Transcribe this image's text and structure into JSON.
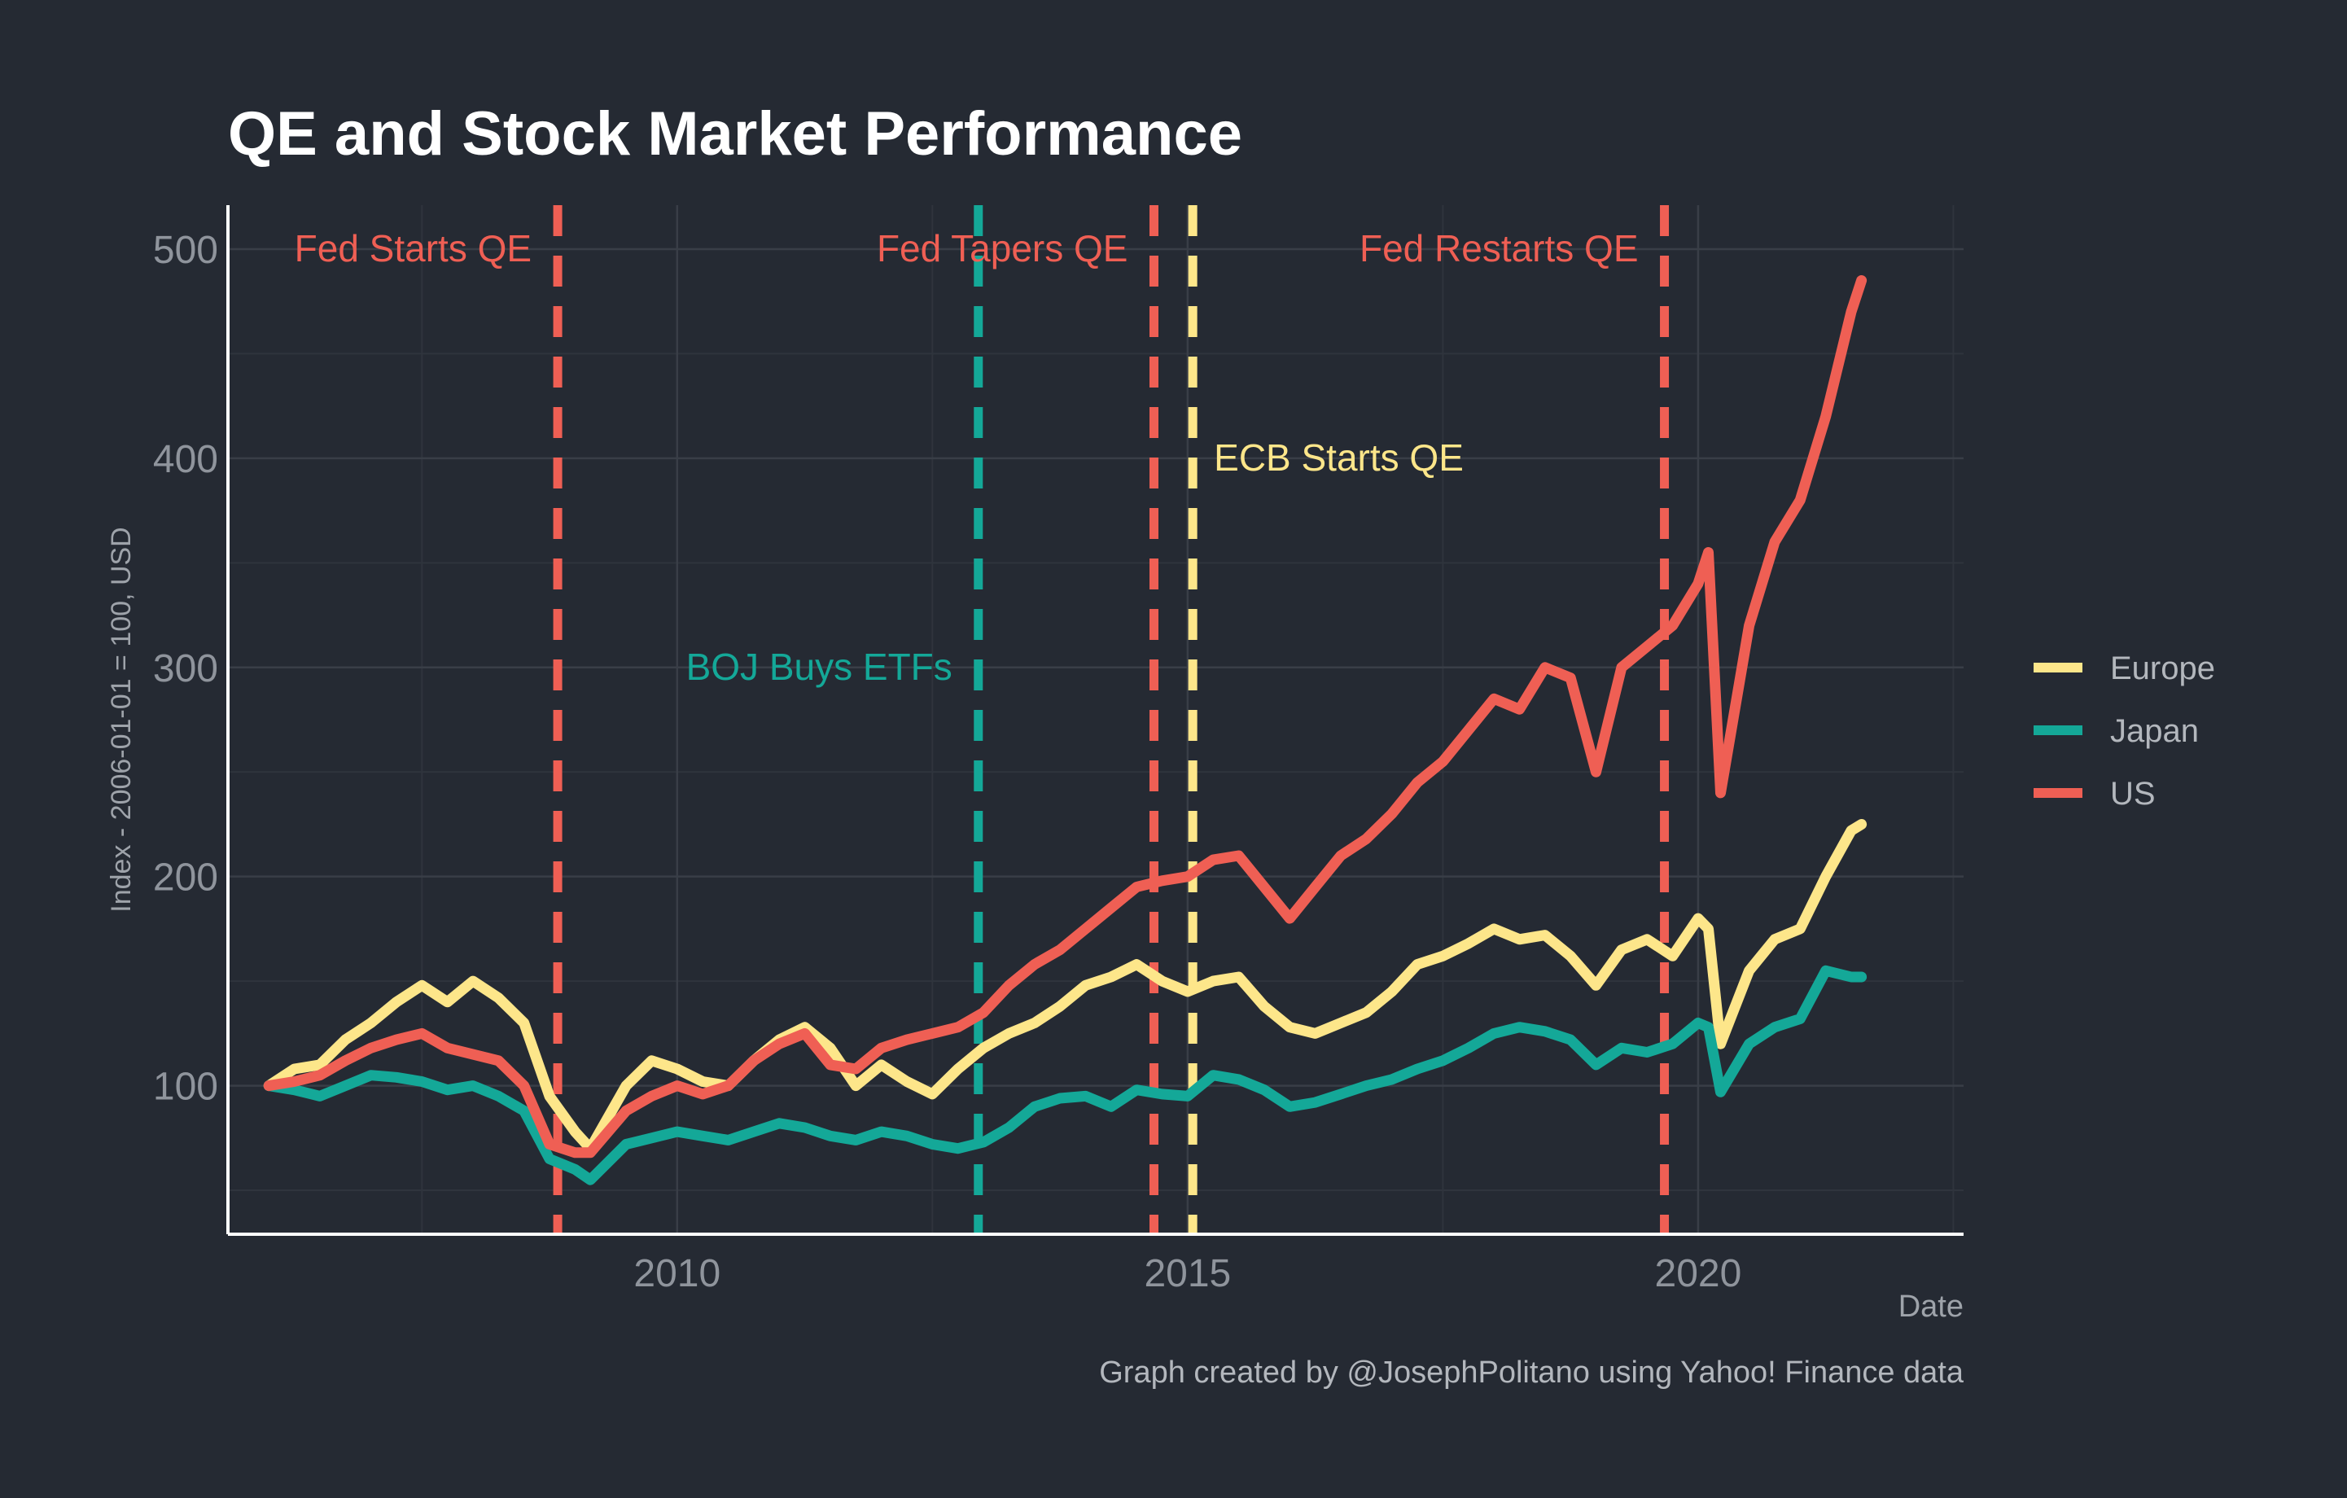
{
  "chart_data": {
    "type": "line",
    "title": "QE and Stock Market Performance",
    "xlabel": "Date",
    "ylabel": "Index - 2006-01-01 = 100, USD",
    "caption": "Graph created by @JosephPolitano using Yahoo! Finance data",
    "xlim": [
      2005.6,
      2022.6
    ],
    "ylim": [
      29,
      521
    ],
    "x_ticks": [
      2010,
      2015,
      2020
    ],
    "y_ticks": [
      100,
      200,
      300,
      400,
      500
    ],
    "grid": true,
    "legend_position": "right",
    "colors": {
      "Europe": "#fde68a",
      "Japan": "#14a898",
      "US": "#ef5f54",
      "background": "#252a33"
    },
    "series": [
      {
        "name": "Europe",
        "color": "#fde68a",
        "x": [
          2006.0,
          2006.25,
          2006.5,
          2006.75,
          2007.0,
          2007.25,
          2007.5,
          2007.75,
          2008.0,
          2008.25,
          2008.5,
          2008.75,
          2009.0,
          2009.15,
          2009.5,
          2009.75,
          2010.0,
          2010.25,
          2010.5,
          2010.75,
          2011.0,
          2011.25,
          2011.5,
          2011.75,
          2012.0,
          2012.25,
          2012.5,
          2012.75,
          2013.0,
          2013.25,
          2013.5,
          2013.75,
          2014.0,
          2014.25,
          2014.5,
          2014.75,
          2015.0,
          2015.25,
          2015.5,
          2015.75,
          2016.0,
          2016.25,
          2016.5,
          2016.75,
          2017.0,
          2017.25,
          2017.5,
          2017.75,
          2018.0,
          2018.25,
          2018.5,
          2018.75,
          2019.0,
          2019.25,
          2019.5,
          2019.75,
          2020.0,
          2020.1,
          2020.22,
          2020.5,
          2020.75,
          2021.0,
          2021.25,
          2021.5,
          2021.6
        ],
        "values": [
          100,
          108,
          110,
          122,
          130,
          140,
          148,
          140,
          150,
          142,
          130,
          95,
          78,
          70,
          100,
          112,
          108,
          102,
          100,
          112,
          122,
          128,
          118,
          100,
          110,
          102,
          96,
          108,
          118,
          125,
          130,
          138,
          148,
          152,
          158,
          150,
          145,
          150,
          152,
          138,
          128,
          125,
          130,
          135,
          145,
          158,
          162,
          168,
          175,
          170,
          172,
          162,
          148,
          165,
          170,
          162,
          180,
          175,
          120,
          155,
          170,
          175,
          200,
          222,
          225
        ]
      },
      {
        "name": "Japan",
        "color": "#14a898",
        "x": [
          2006.0,
          2006.25,
          2006.5,
          2006.75,
          2007.0,
          2007.25,
          2007.5,
          2007.75,
          2008.0,
          2008.25,
          2008.5,
          2008.75,
          2009.0,
          2009.15,
          2009.5,
          2009.75,
          2010.0,
          2010.25,
          2010.5,
          2010.75,
          2011.0,
          2011.25,
          2011.5,
          2011.75,
          2012.0,
          2012.25,
          2012.5,
          2012.75,
          2013.0,
          2013.25,
          2013.5,
          2013.75,
          2014.0,
          2014.25,
          2014.5,
          2014.75,
          2015.0,
          2015.25,
          2015.5,
          2015.75,
          2016.0,
          2016.25,
          2016.5,
          2016.75,
          2017.0,
          2017.25,
          2017.5,
          2017.75,
          2018.0,
          2018.25,
          2018.5,
          2018.75,
          2019.0,
          2019.25,
          2019.5,
          2019.75,
          2020.0,
          2020.1,
          2020.22,
          2020.5,
          2020.75,
          2021.0,
          2021.25,
          2021.5,
          2021.6
        ],
        "values": [
          100,
          98,
          95,
          100,
          105,
          104,
          102,
          98,
          100,
          95,
          88,
          65,
          60,
          55,
          72,
          75,
          78,
          76,
          74,
          78,
          82,
          80,
          76,
          74,
          78,
          76,
          72,
          70,
          73,
          80,
          90,
          94,
          95,
          90,
          98,
          96,
          95,
          105,
          103,
          98,
          90,
          92,
          96,
          100,
          103,
          108,
          112,
          118,
          125,
          128,
          126,
          122,
          110,
          118,
          116,
          120,
          130,
          128,
          97,
          120,
          128,
          132,
          155,
          152,
          152
        ]
      },
      {
        "name": "US",
        "color": "#ef5f54",
        "x": [
          2006.0,
          2006.25,
          2006.5,
          2006.75,
          2007.0,
          2007.25,
          2007.5,
          2007.75,
          2008.0,
          2008.25,
          2008.5,
          2008.75,
          2009.0,
          2009.15,
          2009.5,
          2009.75,
          2010.0,
          2010.25,
          2010.5,
          2010.75,
          2011.0,
          2011.25,
          2011.5,
          2011.75,
          2012.0,
          2012.25,
          2012.5,
          2012.75,
          2013.0,
          2013.25,
          2013.5,
          2013.75,
          2014.0,
          2014.25,
          2014.5,
          2014.75,
          2015.0,
          2015.25,
          2015.5,
          2015.75,
          2016.0,
          2016.25,
          2016.5,
          2016.75,
          2017.0,
          2017.25,
          2017.5,
          2017.75,
          2018.0,
          2018.25,
          2018.5,
          2018.75,
          2019.0,
          2019.25,
          2019.5,
          2019.75,
          2020.0,
          2020.1,
          2020.22,
          2020.5,
          2020.75,
          2021.0,
          2021.25,
          2021.5,
          2021.6
        ],
        "values": [
          100,
          102,
          105,
          112,
          118,
          122,
          125,
          118,
          115,
          112,
          100,
          72,
          68,
          68,
          88,
          95,
          100,
          96,
          100,
          112,
          120,
          125,
          110,
          108,
          118,
          122,
          125,
          128,
          135,
          148,
          158,
          165,
          175,
          185,
          195,
          198,
          200,
          208,
          210,
          195,
          180,
          195,
          210,
          218,
          230,
          245,
          255,
          270,
          285,
          280,
          300,
          295,
          250,
          300,
          310,
          320,
          340,
          355,
          240,
          320,
          360,
          380,
          420,
          470,
          485
        ]
      }
    ],
    "events": [
      {
        "x": 2008.83,
        "label": "Fed Starts QE",
        "color": "#ef5f54",
        "label_y": 500,
        "label_side": "left"
      },
      {
        "x": 2012.95,
        "label": "BOJ Buys ETFs",
        "color": "#14a898",
        "label_y": 300,
        "label_side": "left"
      },
      {
        "x": 2014.67,
        "label": "Fed Tapers QE",
        "color": "#ef5f54",
        "label_y": 500,
        "label_side": "left"
      },
      {
        "x": 2015.05,
        "label": "ECB Starts QE",
        "color": "#fde68a",
        "label_y": 400,
        "label_side": "right"
      },
      {
        "x": 2019.67,
        "label": "Fed Restarts QE",
        "color": "#ef5f54",
        "label_y": 500,
        "label_side": "left"
      }
    ]
  }
}
